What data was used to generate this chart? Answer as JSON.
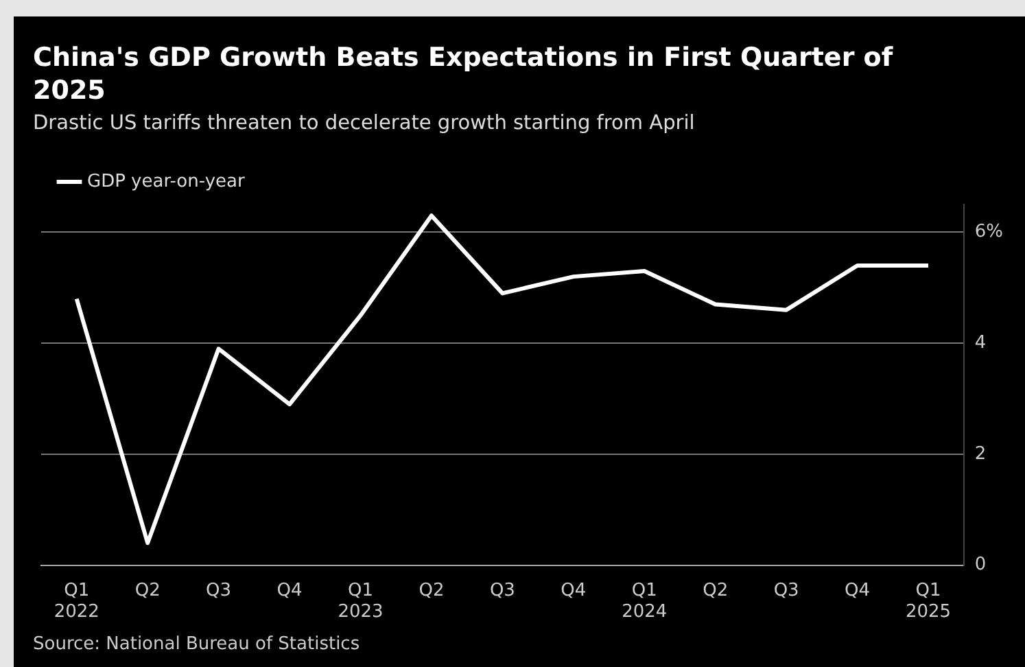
{
  "chart_data": {
    "type": "line",
    "title": "China's GDP Growth Beats Expectations in First Quarter of 2025",
    "subtitle": "Drastic US tariffs threaten to decelerate growth starting from April",
    "categories": [
      "Q1\n2022",
      "Q2",
      "Q3",
      "Q4",
      "Q1\n2023",
      "Q2",
      "Q3",
      "Q4",
      "Q1\n2024",
      "Q2",
      "Q3",
      "Q4",
      "Q1\n2025"
    ],
    "series": [
      {
        "name": "GDP year-on-year",
        "color": "#ffffff",
        "values": [
          4.8,
          0.4,
          3.9,
          2.9,
          4.5,
          6.3,
          4.9,
          5.2,
          5.3,
          4.7,
          4.6,
          5.4,
          5.4
        ]
      }
    ],
    "ylim": [
      0,
      6.5
    ],
    "yticks": [
      0,
      2,
      4,
      {
        "value": 6,
        "label": "6%"
      }
    ],
    "grid": "y",
    "legend": "top left",
    "marker": "none",
    "line_style": "solid",
    "annotations": [
      "Source: National Bureau of Statistics"
    ]
  }
}
